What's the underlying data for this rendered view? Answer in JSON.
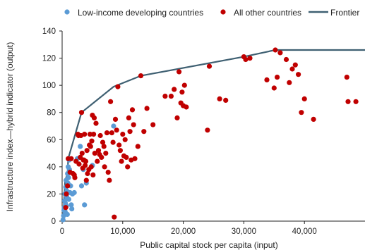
{
  "chart_data": {
    "type": "scatter",
    "title": "",
    "xlabel": "Public capital stock per capita (input)",
    "ylabel": "Infrastructure index—hybrid indicator (output)",
    "xlim": [
      0,
      50000
    ],
    "ylim": [
      0,
      140
    ],
    "x_ticks": [
      0,
      10000,
      20000,
      30000,
      40000
    ],
    "x_tick_labels": [
      "0",
      "10,000",
      "20,000",
      "30,000",
      "40,000"
    ],
    "y_ticks": [
      0,
      20,
      40,
      60,
      80,
      100,
      120,
      140
    ],
    "y_tick_labels": [
      "0",
      "20",
      "40",
      "60",
      "80",
      "100",
      "120",
      "140"
    ],
    "grid": false,
    "legend_position": "top",
    "colors": {
      "low_income": "#5b9bd5",
      "other": "#c00000",
      "frontier": "#3f6072",
      "axis": "#222222"
    },
    "series": [
      {
        "name": "Low-income developing countries",
        "kind": "scatter",
        "points": [
          [
            150,
            1
          ],
          [
            250,
            4
          ],
          [
            300,
            8
          ],
          [
            350,
            10
          ],
          [
            400,
            15
          ],
          [
            450,
            20
          ],
          [
            500,
            7
          ],
          [
            550,
            13
          ],
          [
            600,
            25
          ],
          [
            650,
            30
          ],
          [
            700,
            11
          ],
          [
            750,
            18
          ],
          [
            800,
            22
          ],
          [
            850,
            5
          ],
          [
            900,
            35
          ],
          [
            950,
            28
          ],
          [
            1000,
            40
          ],
          [
            1050,
            32
          ],
          [
            1100,
            16
          ],
          [
            1150,
            45
          ],
          [
            1200,
            38
          ],
          [
            1300,
            21
          ],
          [
            1400,
            26
          ],
          [
            1500,
            12
          ],
          [
            1600,
            9
          ],
          [
            1700,
            20
          ],
          [
            2000,
            21
          ],
          [
            2500,
            46
          ],
          [
            3000,
            55
          ],
          [
            3200,
            26
          ],
          [
            3500,
            38
          ],
          [
            3700,
            12
          ],
          [
            4000,
            28
          ],
          [
            5000,
            41
          ],
          [
            8500,
            70
          ]
        ]
      },
      {
        "name": "All other countries",
        "kind": "scatter",
        "points": [
          [
            600,
            10
          ],
          [
            700,
            20
          ],
          [
            900,
            26
          ],
          [
            1000,
            46
          ],
          [
            1300,
            36
          ],
          [
            1500,
            46
          ],
          [
            1800,
            35
          ],
          [
            2000,
            34
          ],
          [
            2100,
            32
          ],
          [
            2300,
            44
          ],
          [
            2600,
            64
          ],
          [
            2700,
            63
          ],
          [
            2800,
            42
          ],
          [
            3000,
            47
          ],
          [
            3100,
            63
          ],
          [
            3200,
            80
          ],
          [
            3300,
            50
          ],
          [
            3400,
            39
          ],
          [
            3500,
            45
          ],
          [
            3600,
            45
          ],
          [
            3700,
            64
          ],
          [
            3800,
            41
          ],
          [
            3900,
            44
          ],
          [
            4000,
            30
          ],
          [
            4100,
            52
          ],
          [
            4200,
            35
          ],
          [
            4400,
            38
          ],
          [
            4500,
            56
          ],
          [
            4600,
            64
          ],
          [
            4700,
            55
          ],
          [
            4800,
            40
          ],
          [
            4900,
            59
          ],
          [
            5000,
            78
          ],
          [
            5100,
            34
          ],
          [
            5200,
            64
          ],
          [
            5300,
            76
          ],
          [
            5400,
            50
          ],
          [
            5600,
            72
          ],
          [
            5800,
            44
          ],
          [
            6000,
            52
          ],
          [
            6200,
            49
          ],
          [
            6300,
            63
          ],
          [
            6500,
            47
          ],
          [
            6700,
            58
          ],
          [
            6900,
            55
          ],
          [
            7000,
            40
          ],
          [
            7200,
            50
          ],
          [
            7400,
            65
          ],
          [
            7600,
            36
          ],
          [
            7800,
            30
          ],
          [
            8000,
            88
          ],
          [
            8200,
            65
          ],
          [
            8400,
            58
          ],
          [
            8600,
            3
          ],
          [
            8800,
            75
          ],
          [
            9000,
            67
          ],
          [
            9200,
            99
          ],
          [
            9400,
            56
          ],
          [
            9600,
            52
          ],
          [
            9800,
            44
          ],
          [
            10000,
            64
          ],
          [
            10200,
            48
          ],
          [
            10400,
            60
          ],
          [
            10600,
            47
          ],
          [
            10800,
            40
          ],
          [
            11000,
            76
          ],
          [
            11200,
            66
          ],
          [
            11400,
            45
          ],
          [
            11600,
            82
          ],
          [
            11800,
            71
          ],
          [
            12000,
            46
          ],
          [
            12500,
            55
          ],
          [
            13000,
            107
          ],
          [
            13500,
            66
          ],
          [
            14000,
            83
          ],
          [
            15000,
            71
          ],
          [
            17000,
            92
          ],
          [
            18000,
            92
          ],
          [
            18500,
            97
          ],
          [
            19000,
            76
          ],
          [
            19300,
            110
          ],
          [
            19600,
            87
          ],
          [
            19800,
            95
          ],
          [
            20000,
            85
          ],
          [
            20200,
            100
          ],
          [
            20500,
            84
          ],
          [
            24000,
            67
          ],
          [
            24300,
            114
          ],
          [
            26000,
            90
          ],
          [
            27000,
            89
          ],
          [
            30000,
            121
          ],
          [
            30300,
            119
          ],
          [
            31000,
            120
          ],
          [
            33800,
            104
          ],
          [
            35000,
            98
          ],
          [
            35200,
            126
          ],
          [
            35500,
            106
          ],
          [
            36000,
            124
          ],
          [
            37000,
            119
          ],
          [
            37500,
            102
          ],
          [
            38000,
            112
          ],
          [
            38500,
            115
          ],
          [
            39000,
            108
          ],
          [
            39500,
            80
          ],
          [
            40000,
            90
          ],
          [
            41500,
            75
          ],
          [
            47000,
            106
          ],
          [
            47200,
            88
          ],
          [
            48500,
            88
          ]
        ]
      },
      {
        "name": "Frontier",
        "kind": "line",
        "points": [
          [
            0,
            0
          ],
          [
            150,
            1
          ],
          [
            500,
            30
          ],
          [
            900,
            35
          ],
          [
            1000,
            46
          ],
          [
            3200,
            80
          ],
          [
            8500,
            99
          ],
          [
            13000,
            107
          ],
          [
            30000,
            121
          ],
          [
            35200,
            126
          ],
          [
            50000,
            126
          ]
        ]
      }
    ]
  }
}
